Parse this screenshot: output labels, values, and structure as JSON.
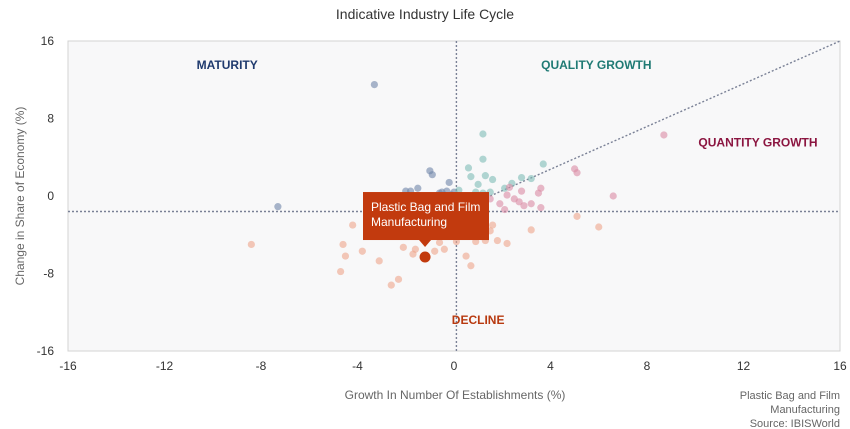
{
  "chart_data": {
    "type": "scatter",
    "title": "Indicative Industry Life Cycle",
    "xlabel": "Growth In Number Of Establishments (%)",
    "ylabel": "Change in Share of Economy (%)",
    "xlim": [
      -16,
      16
    ],
    "ylim": [
      -16,
      16
    ],
    "x_ticks": [
      "-16",
      "-12",
      "-8",
      "-4",
      "0",
      "4",
      "8",
      "12",
      "16"
    ],
    "y_ticks": [
      "16",
      "8",
      "0",
      "-8",
      "-16"
    ],
    "x_ref": 0.1,
    "y_ref": -1.6,
    "diagonal_line": {
      "from": [
        1.5,
        0
      ],
      "to": [
        16,
        16
      ]
    },
    "regions": [
      {
        "label": "MATURITY",
        "color": "#1f3a6e",
        "x": -9.4,
        "y": 13.5
      },
      {
        "label": "QUALITY GROWTH",
        "color": "#1f7a74",
        "x": 5.9,
        "y": 13.5
      },
      {
        "label": "QUANTITY GROWTH",
        "color": "#8b1540",
        "x": 12.6,
        "y": 5.5
      },
      {
        "label": "DECLINE",
        "color": "#b83a10",
        "x": 1.0,
        "y": -12.8
      }
    ],
    "highlight": {
      "label_lines": [
        "Plastic Bag and Film",
        "Manufacturing"
      ],
      "x": -1.2,
      "y": -6.3,
      "color": "#c23a0e"
    },
    "points_maturity": [
      [
        -3.3,
        11.5
      ],
      [
        -7.3,
        -1.1
      ],
      [
        -1.0,
        2.6
      ],
      [
        -0.9,
        2.2
      ],
      [
        -1.5,
        0.8
      ],
      [
        -1.8,
        0.5
      ],
      [
        -2.0,
        0.5
      ],
      [
        -0.5,
        0.4
      ],
      [
        -0.3,
        0.5
      ],
      [
        -0.1,
        0.1
      ],
      [
        -0.6,
        0.3
      ],
      [
        0.0,
        0.4
      ],
      [
        -0.2,
        1.4
      ]
    ],
    "points_quality": [
      [
        1.2,
        6.4
      ],
      [
        0.6,
        2.9
      ],
      [
        1.2,
        3.8
      ],
      [
        1.3,
        2.1
      ],
      [
        0.7,
        2.0
      ],
      [
        1.6,
        1.7
      ],
      [
        2.8,
        1.9
      ],
      [
        3.2,
        1.8
      ],
      [
        3.7,
        3.3
      ],
      [
        1.0,
        1.2
      ],
      [
        2.4,
        1.3
      ],
      [
        1.5,
        0.4
      ],
      [
        0.9,
        0.4
      ],
      [
        1.2,
        0.3
      ],
      [
        0.2,
        0.6
      ],
      [
        2.1,
        0.8
      ]
    ],
    "points_quantity": [
      [
        8.7,
        6.3
      ],
      [
        5.0,
        2.8
      ],
      [
        5.1,
        2.4
      ],
      [
        6.6,
        0.0
      ],
      [
        3.6,
        0.8
      ],
      [
        3.5,
        0.3
      ],
      [
        2.8,
        0.5
      ],
      [
        2.3,
        0.9
      ],
      [
        2.2,
        0.1
      ],
      [
        2.7,
        -0.6
      ],
      [
        3.2,
        -0.8
      ],
      [
        3.6,
        -1.2
      ],
      [
        2.9,
        -1.0
      ],
      [
        1.9,
        -0.8
      ],
      [
        2.5,
        -0.3
      ],
      [
        1.5,
        -0.3
      ],
      [
        2.1,
        -1.4
      ]
    ],
    "points_decline": [
      [
        -8.4,
        -5.0
      ],
      [
        -4.6,
        -5.0
      ],
      [
        -4.2,
        -3.0
      ],
      [
        -4.7,
        -7.8
      ],
      [
        -4.5,
        -6.2
      ],
      [
        -3.8,
        -5.7
      ],
      [
        -3.1,
        -6.7
      ],
      [
        -2.1,
        -5.3
      ],
      [
        -2.6,
        -9.2
      ],
      [
        -2.3,
        -8.6
      ],
      [
        -2.0,
        -4.1
      ],
      [
        -1.7,
        -6.0
      ],
      [
        -1.6,
        -5.5
      ],
      [
        -0.8,
        -5.7
      ],
      [
        -0.4,
        -5.5
      ],
      [
        -0.6,
        -4.8
      ],
      [
        0.1,
        -4.7
      ],
      [
        0.5,
        -6.2
      ],
      [
        0.7,
        -7.2
      ],
      [
        0.9,
        -4.7
      ],
      [
        1.3,
        -4.6
      ],
      [
        1.5,
        -3.6
      ],
      [
        1.6,
        -3.0
      ],
      [
        1.8,
        -4.6
      ],
      [
        2.2,
        -4.9
      ],
      [
        3.2,
        -3.5
      ],
      [
        5.1,
        -2.1
      ],
      [
        6.0,
        -3.2
      ],
      [
        -0.9,
        -3.2
      ],
      [
        1.0,
        -2.6
      ],
      [
        -2.8,
        -4.0
      ]
    ],
    "source": [
      "Plastic Bag and Film",
      "Manufacturing",
      "Source: IBISWorld"
    ]
  }
}
